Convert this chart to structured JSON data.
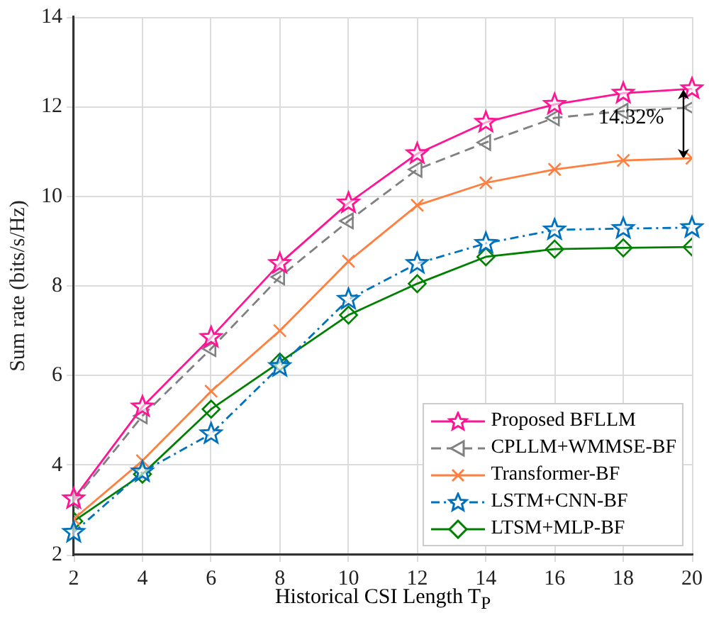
{
  "chart_data": {
    "type": "line",
    "xlabel": "Historical CSI Length T$_{P}$",
    "ylabel": "Sum rate (bits/s/Hz)",
    "x": [
      2,
      4,
      6,
      8,
      10,
      12,
      14,
      16,
      18,
      20
    ],
    "xlim": [
      2,
      20
    ],
    "xticks": [
      2,
      4,
      6,
      8,
      10,
      12,
      14,
      16,
      18,
      20
    ],
    "ylim": [
      2,
      14
    ],
    "yticks": [
      2,
      4,
      6,
      8,
      10,
      12,
      14
    ],
    "grid": true,
    "legend": "bottom right",
    "series": [
      {
        "name": "Proposed BFLLM",
        "color": "#ff1493",
        "marker": "star",
        "line_style": "solid",
        "values": [
          3.25,
          5.3,
          6.85,
          8.5,
          9.85,
          10.95,
          11.65,
          12.05,
          12.3,
          12.4
        ]
      },
      {
        "name": "CPLLM+WMMSE-BF",
        "color": "#808080",
        "marker": "triangle",
        "line_style": "dashed",
        "values": [
          3.2,
          5.1,
          6.6,
          8.2,
          9.45,
          10.6,
          11.2,
          11.75,
          11.9,
          11.98
        ]
      },
      {
        "name": "Transformer-BF",
        "color": "#ff7f3f",
        "marker": "cross",
        "line_style": "solid",
        "values": [
          2.8,
          4.1,
          5.65,
          7.0,
          8.55,
          9.8,
          10.3,
          10.6,
          10.8,
          10.85
        ]
      },
      {
        "name": "LSTM+CNN-BF",
        "color": "#0072bd",
        "marker": "star",
        "line_style": "dashdot",
        "values": [
          2.5,
          3.85,
          4.7,
          6.2,
          7.7,
          8.5,
          8.95,
          9.25,
          9.28,
          9.3
        ]
      },
      {
        "name": "LTSM+MLP-BF",
        "color": "#008000",
        "marker": "diamond",
        "line_style": "solid",
        "values": [
          2.75,
          3.8,
          5.25,
          6.3,
          7.35,
          8.05,
          8.65,
          8.82,
          8.85,
          8.87
        ]
      }
    ],
    "annotations": [
      "14.32%"
    ]
  }
}
